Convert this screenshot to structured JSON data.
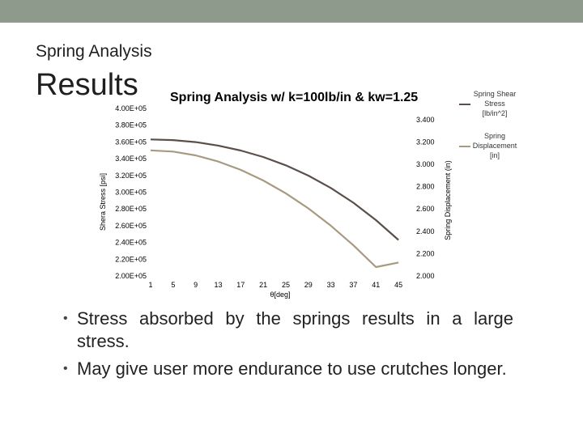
{
  "slide": {
    "subtitle": "Spring Analysis",
    "title": "Results",
    "bullets": [
      "Stress absorbed by the springs results in a large stress.",
      "May give user more endurance to use crutches longer."
    ]
  },
  "chart_data": {
    "type": "line",
    "title": "Spring Analysis w/ k=100lb/in & kw=1.25",
    "xlabel": "θ[deg]",
    "ylabel_left": "Shera Stress [psi]",
    "ylabel_right": "Spring Displacement (in)",
    "x_ticks": [
      "1",
      "5",
      "9",
      "13",
      "17",
      "21",
      "25",
      "29",
      "33",
      "37",
      "41",
      "45"
    ],
    "y_left_ticks": [
      "4.00E+05",
      "3.80E+05",
      "3.60E+05",
      "3.40E+05",
      "3.20E+05",
      "3.00E+05",
      "2.80E+05",
      "2.60E+05",
      "2.40E+05",
      "2.20E+05",
      "2.00E+05"
    ],
    "y_right_ticks": [
      "3.400",
      "3.200",
      "3.000",
      "2.800",
      "2.600",
      "2.400",
      "2.200",
      "2.000"
    ],
    "y_left_range": [
      200000,
      400000
    ],
    "y_right_range": [
      2.0,
      3.5
    ],
    "x_range": [
      1,
      47
    ],
    "series": [
      {
        "name": "Spring Shear Stress [lb/in^2]",
        "axis": "left",
        "color": "#5b4f4b",
        "x": [
          1,
          5,
          9,
          13,
          17,
          21,
          25,
          29,
          33,
          37,
          41,
          45
        ],
        "y": [
          363000,
          362200,
          359800,
          355700,
          349800,
          342000,
          332100,
          319800,
          305000,
          287400,
          266700,
          243000
        ]
      },
      {
        "name": "Spring Displacement [in]",
        "axis": "right",
        "color": "#a89a80",
        "x": [
          1,
          5,
          9,
          13,
          17,
          21,
          25,
          29,
          33,
          37,
          41,
          45
        ],
        "y": [
          3.125,
          3.114,
          3.08,
          3.025,
          2.95,
          2.855,
          2.74,
          2.605,
          2.45,
          2.275,
          2.08,
          2.12
        ]
      }
    ]
  }
}
